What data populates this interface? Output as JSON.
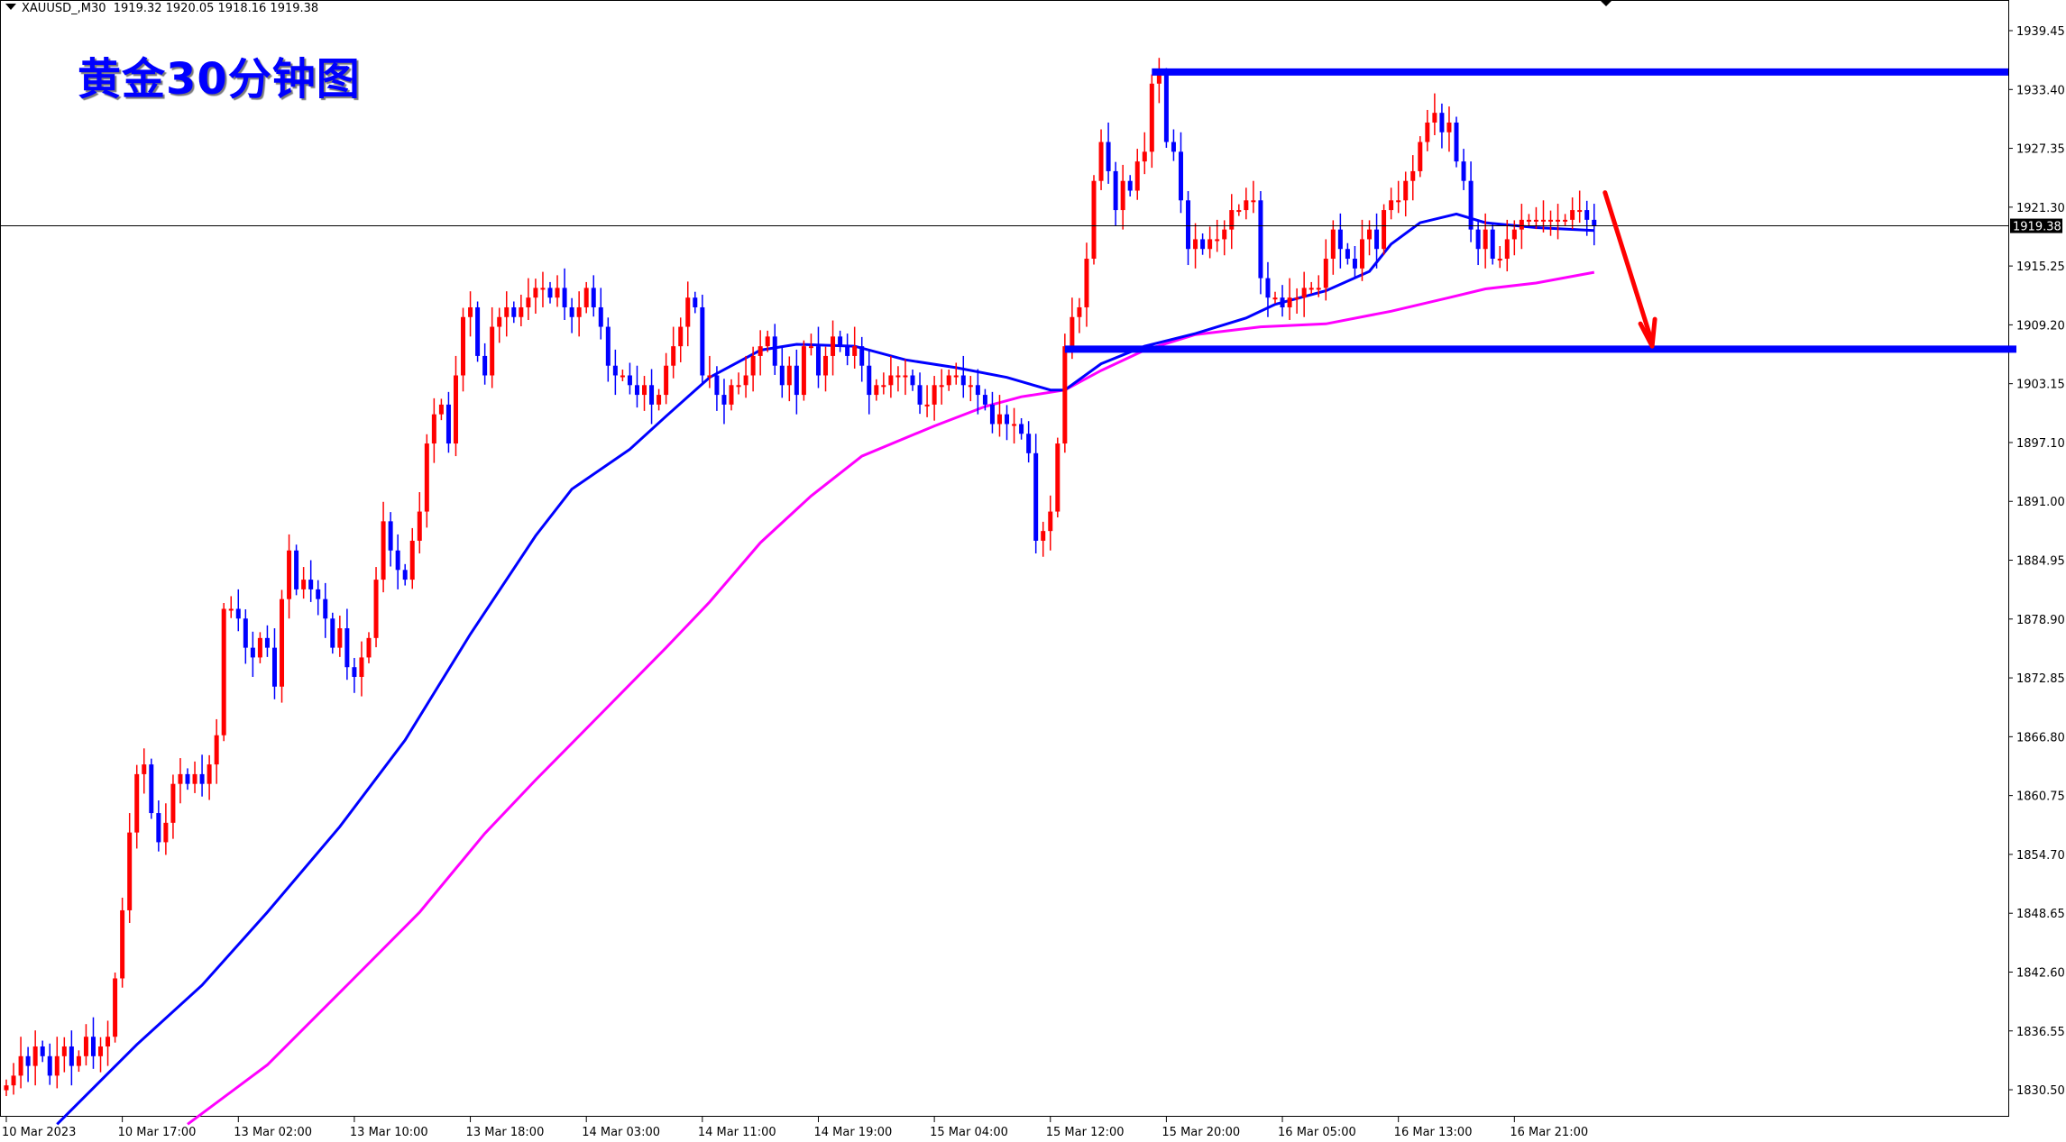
{
  "header": {
    "symbol": "XAUUSD_,M30",
    "ohlc_readout": "1919.32 1920.05 1918.16 1919.38"
  },
  "overlay_title": "黄金30分钟图",
  "colors": {
    "bull": "#ff0000",
    "bear": "#0000ff",
    "ma_fast": "#0000ff",
    "ma_slow": "#ff00ff",
    "level_lines": "#0000ff",
    "arrow": "#ff0000",
    "price_label_bg": "#000000"
  },
  "chart_data": {
    "type": "candlestick",
    "timeframe": "M30",
    "grid": false,
    "ylim": [
      1828,
      1942
    ],
    "y_ticks": [
      "1939.45",
      "1933.40",
      "1927.35",
      "1921.30",
      "1915.25",
      "1909.20",
      "1903.15",
      "1897.10",
      "1891.00",
      "1884.95",
      "1878.90",
      "1872.85",
      "1866.80",
      "1860.75",
      "1854.70",
      "1848.65",
      "1842.60",
      "1836.55",
      "1830.50"
    ],
    "x_ticks": [
      {
        "bar": 0,
        "label": "10 Mar 2023"
      },
      {
        "bar": 16,
        "label": "10 Mar 17:00"
      },
      {
        "bar": 32,
        "label": "13 Mar 02:00"
      },
      {
        "bar": 48,
        "label": "13 Mar 10:00"
      },
      {
        "bar": 64,
        "label": "13 Mar 18:00"
      },
      {
        "bar": 80,
        "label": "14 Mar 03:00"
      },
      {
        "bar": 96,
        "label": "14 Mar 11:00"
      },
      {
        "bar": 112,
        "label": "14 Mar 19:00"
      },
      {
        "bar": 128,
        "label": "15 Mar 04:00"
      },
      {
        "bar": 144,
        "label": "15 Mar 12:00"
      },
      {
        "bar": 160,
        "label": "15 Mar 20:00"
      },
      {
        "bar": 176,
        "label": "16 Mar 05:00"
      },
      {
        "bar": 192,
        "label": "16 Mar 13:00"
      },
      {
        "bar": 208,
        "label": "16 Mar 21:00"
      }
    ],
    "current_price": "1919.38",
    "closes": [
      1831,
      1832,
      1834,
      1833,
      1835,
      1834,
      1832,
      1834,
      1835,
      1833,
      1834,
      1836,
      1834,
      1835,
      1836,
      1842,
      1849,
      1857,
      1863,
      1864,
      1859,
      1856,
      1858,
      1862,
      1863,
      1862,
      1863,
      1862,
      1864,
      1867,
      1880,
      1880,
      1879,
      1876,
      1875,
      1877,
      1876,
      1872,
      1881,
      1886,
      1882,
      1883,
      1882,
      1881,
      1879,
      1876,
      1878,
      1874,
      1873,
      1875,
      1877,
      1883,
      1889,
      1886,
      1884,
      1883,
      1887,
      1890,
      1897,
      1900,
      1901,
      1897,
      1904,
      1910,
      1911,
      1906,
      1904,
      1909,
      1910,
      1911,
      1910,
      1911,
      1912,
      1913,
      1913,
      1912,
      1913,
      1911,
      1910,
      1911,
      1913,
      1911,
      1909,
      1905,
      1904,
      1904,
      1903,
      1902,
      1903,
      1901,
      1902,
      1905,
      1907,
      1909,
      1912,
      1911,
      1904,
      1904,
      1902,
      1901,
      1903,
      1903,
      1904,
      1906,
      1907,
      1908,
      1905,
      1903,
      1905,
      1902,
      1907,
      1907,
      1904,
      1906,
      1908,
      1907,
      1906,
      1907,
      1905,
      1902,
      1903,
      1903,
      1904,
      1904,
      1904,
      1903,
      1901,
      1901,
      1903,
      1903,
      1904,
      1904,
      1903,
      1903,
      1902,
      1901,
      1899,
      1900,
      1899,
      1899,
      1898,
      1896,
      1887,
      1888,
      1890,
      1897,
      1907,
      1910,
      1911,
      1916,
      1924,
      1928,
      1925,
      1921,
      1924,
      1923,
      1926,
      1927,
      1934,
      1935,
      1928,
      1927,
      1922,
      1917,
      1918,
      1917,
      1918,
      1918,
      1919,
      1921,
      1921,
      1922,
      1922,
      1914,
      1912,
      1912,
      1911,
      1912,
      1912,
      1913,
      1913,
      1913,
      1916,
      1919,
      1917,
      1916,
      1915,
      1918,
      1919,
      1917,
      1921,
      1922,
      1922,
      1924,
      1925,
      1928,
      1930,
      1931,
      1929,
      1930,
      1926,
      1924,
      1919,
      1917,
      1919,
      1916,
      1916,
      1918,
      1919,
      1920,
      1920,
      1920,
      1920,
      1920,
      1920,
      1920,
      1921,
      1921,
      1920,
      1919.38
    ],
    "open_first": 1830.5,
    "ma_fast": [
      [
        7,
        1827.0
      ],
      [
        18,
        1835.2
      ],
      [
        27,
        1841.3
      ],
      [
        36,
        1848.8
      ],
      [
        46,
        1857.6
      ],
      [
        55,
        1866.5
      ],
      [
        64,
        1877.4
      ],
      [
        73,
        1887.5
      ],
      [
        78,
        1892.3
      ],
      [
        86,
        1896.4
      ],
      [
        91,
        1899.8
      ],
      [
        97,
        1903.8
      ],
      [
        104,
        1906.6
      ],
      [
        109,
        1907.2
      ],
      [
        117,
        1907.0
      ],
      [
        124,
        1905.6
      ],
      [
        131,
        1904.8
      ],
      [
        138,
        1903.8
      ],
      [
        144,
        1902.5
      ],
      [
        146,
        1902.5
      ],
      [
        151,
        1905.2
      ],
      [
        157,
        1907.0
      ],
      [
        164,
        1908.3
      ],
      [
        171,
        1909.9
      ],
      [
        175,
        1911.3
      ],
      [
        182,
        1912.7
      ],
      [
        188,
        1914.7
      ],
      [
        191,
        1917.5
      ],
      [
        195,
        1919.7
      ],
      [
        200,
        1920.6
      ],
      [
        204,
        1919.7
      ],
      [
        211,
        1919.2
      ],
      [
        219,
        1918.9
      ]
    ],
    "ma_slow": [
      [
        25,
        1827.0
      ],
      [
        36,
        1833.1
      ],
      [
        47,
        1841.3
      ],
      [
        57,
        1848.8
      ],
      [
        66,
        1856.9
      ],
      [
        73,
        1862.4
      ],
      [
        82,
        1869.2
      ],
      [
        91,
        1876.0
      ],
      [
        97,
        1880.7
      ],
      [
        104,
        1886.8
      ],
      [
        111,
        1891.6
      ],
      [
        118,
        1895.7
      ],
      [
        128,
        1898.8
      ],
      [
        135,
        1900.8
      ],
      [
        140,
        1901.8
      ],
      [
        146,
        1902.5
      ],
      [
        151,
        1904.5
      ],
      [
        157,
        1906.6
      ],
      [
        164,
        1908.2
      ],
      [
        173,
        1909.0
      ],
      [
        182,
        1909.3
      ],
      [
        191,
        1910.6
      ],
      [
        199,
        1912.0
      ],
      [
        204,
        1912.9
      ],
      [
        211,
        1913.5
      ],
      [
        219,
        1914.6
      ]
    ],
    "levels": [
      {
        "price": 1935.2,
        "from_bar": 158
      },
      {
        "price": 1906.7,
        "from_bar": 146
      }
    ],
    "arrow": {
      "from": {
        "bar": 220.5,
        "price": 1922.8
      },
      "to": {
        "bar": 227,
        "price": 1907.0
      }
    }
  }
}
